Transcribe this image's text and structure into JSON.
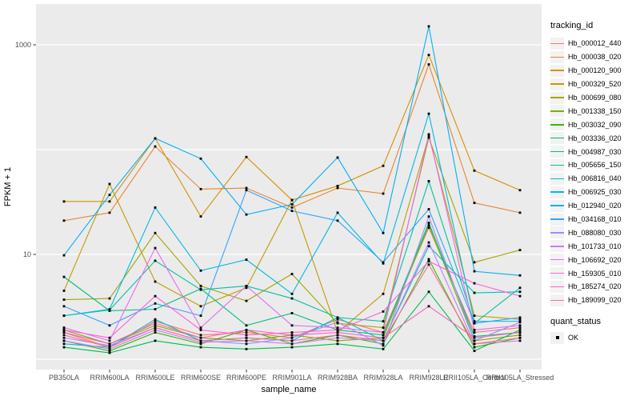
{
  "figure": {
    "background": "#FFFFFF",
    "panel_background": "#EBEBEB",
    "gridline_color": "#FFFFFF",
    "tick_color": "#333333",
    "tick_label_color": "#4D4D4D",
    "axis_title_color": "#000000",
    "point_color": "#000000"
  },
  "chart_data": {
    "type": "line",
    "title": "",
    "xlabel": "sample_name",
    "ylabel": "FPKM + 1",
    "y_scale": "log10",
    "ylim": [
      0.8,
      2500
    ],
    "y_ticks": [
      {
        "label": "1000",
        "value": 1000
      },
      {
        "label": "10",
        "value": 10
      }
    ],
    "grid_values": [
      1,
      10,
      100,
      1000
    ],
    "legend_position": "right",
    "legend_title": "tracking_id",
    "status_legend": {
      "title": "quant_status",
      "label": "OK",
      "marker": "black-square"
    },
    "point_marker": "black-square",
    "categories": [
      "PB350LA",
      "RRIM600LA",
      "RRIM600LE",
      "RRIM600SE",
      "RRIM600PE",
      "RRIM901LA",
      "RRIM928BA",
      "RRIM928LA",
      "RRIM928LE",
      "RRII105LA_Control",
      "RRII105LA_Stressed"
    ],
    "series": [
      {
        "name": "Hb_000012_440",
        "color": "#F8766D",
        "values": [
          1.8,
          1.3,
          2.3,
          1.7,
          1.8,
          1.6,
          2.4,
          1.8,
          18,
          1.8,
          2.0
        ]
      },
      {
        "name": "Hb_000038_020",
        "color": "#EA8331",
        "values": [
          21,
          25,
          107,
          42,
          43,
          28,
          43,
          38,
          650,
          31,
          25
        ]
      },
      {
        "name": "Hb_000120_900",
        "color": "#D89000",
        "values": [
          32,
          32,
          128,
          23,
          85,
          33,
          45,
          70,
          800,
          63,
          41
        ]
      },
      {
        "name": "Hb_000329_520",
        "color": "#C09B00",
        "values": [
          4.5,
          47,
          5.5,
          3.2,
          4.8,
          33,
          1.8,
          4.2,
          135,
          2.6,
          2.4
        ]
      },
      {
        "name": "Hb_000699_080",
        "color": "#A3A500",
        "values": [
          3.7,
          3.8,
          16,
          5.0,
          3.6,
          6.5,
          2.2,
          2.0,
          130,
          8.4,
          11
        ]
      },
      {
        "name": "Hb_001338_150",
        "color": "#7CAE00",
        "values": [
          1.9,
          1.4,
          2.1,
          1.6,
          1.5,
          1.7,
          1.5,
          1.6,
          19,
          1.5,
          1.7
        ]
      },
      {
        "name": "Hb_003032_090",
        "color": "#39B600",
        "values": [
          1.5,
          1.2,
          1.8,
          1.4,
          1.9,
          1.4,
          1.7,
          1.4,
          9,
          1.3,
          1.6
        ]
      },
      {
        "name": "Hb_003336_020",
        "color": "#00BB4E",
        "values": [
          1.3,
          1.15,
          1.5,
          1.3,
          1.25,
          1.3,
          1.4,
          1.25,
          4.4,
          1.2,
          1.9
        ]
      },
      {
        "name": "Hb_004987_030",
        "color": "#00BF7D",
        "values": [
          6.1,
          2.9,
          3.0,
          4.7,
          2.1,
          2.75,
          1.9,
          1.7,
          20,
          1.65,
          1.8
        ]
      },
      {
        "name": "Hb_005656_150",
        "color": "#00C1A3",
        "values": [
          2.6,
          2.95,
          8.7,
          4.6,
          5.0,
          3.8,
          2.5,
          2.3,
          50,
          2.2,
          4.8
        ]
      },
      {
        "name": "Hb_006816_040",
        "color": "#00BFC4",
        "values": [
          1.4,
          1.3,
          2.4,
          1.5,
          1.6,
          1.5,
          2.5,
          1.5,
          12,
          4.3,
          4.4
        ]
      },
      {
        "name": "Hb_006925_030",
        "color": "#00BAE0",
        "values": [
          2.6,
          3.0,
          28,
          7.0,
          8.9,
          4.2,
          25,
          8.2,
          220,
          2.3,
          2.3
        ]
      },
      {
        "name": "Hb_012940_020",
        "color": "#00B0F6",
        "values": [
          9.8,
          37,
          128,
          82,
          24,
          30,
          84,
          16,
          1500,
          6.9,
          6.3
        ]
      },
      {
        "name": "Hb_034168_010",
        "color": "#35A2FF",
        "values": [
          3.2,
          2.1,
          3.4,
          2.6,
          41,
          26,
          21,
          8.4,
          27,
          2.2,
          2.5
        ]
      },
      {
        "name": "Hb_088080_030",
        "color": "#9590FF",
        "values": [
          1.6,
          1.35,
          2.0,
          1.5,
          1.4,
          1.6,
          2.25,
          1.35,
          23,
          1.5,
          2.25
        ]
      },
      {
        "name": "Hb_101733_010",
        "color": "#C77CFF",
        "values": [
          1.5,
          1.25,
          1.9,
          1.45,
          1.5,
          1.4,
          1.6,
          1.5,
          13,
          1.4,
          1.5
        ]
      },
      {
        "name": "Hb_106692_020",
        "color": "#E76BF3",
        "values": [
          2.0,
          1.5,
          11.5,
          2.0,
          5.0,
          2.1,
          2.0,
          1.8,
          140,
          1.9,
          2.1
        ]
      },
      {
        "name": "Hb_159305_010",
        "color": "#FA62DB",
        "values": [
          1.9,
          1.6,
          4.0,
          1.9,
          1.7,
          1.8,
          1.9,
          2.85,
          8.6,
          5.3,
          4.0
        ]
      },
      {
        "name": "Hb_185274_020",
        "color": "#FF62BC",
        "values": [
          1.8,
          1.4,
          2.2,
          1.6,
          1.9,
          1.7,
          1.8,
          1.6,
          3.2,
          1.6,
          1.8
        ]
      },
      {
        "name": "Hb_189099_020",
        "color": "#FF6A98",
        "values": [
          1.7,
          1.3,
          2.0,
          1.5,
          1.6,
          1.5,
          1.7,
          1.5,
          8,
          1.4,
          1.6
        ]
      }
    ]
  }
}
